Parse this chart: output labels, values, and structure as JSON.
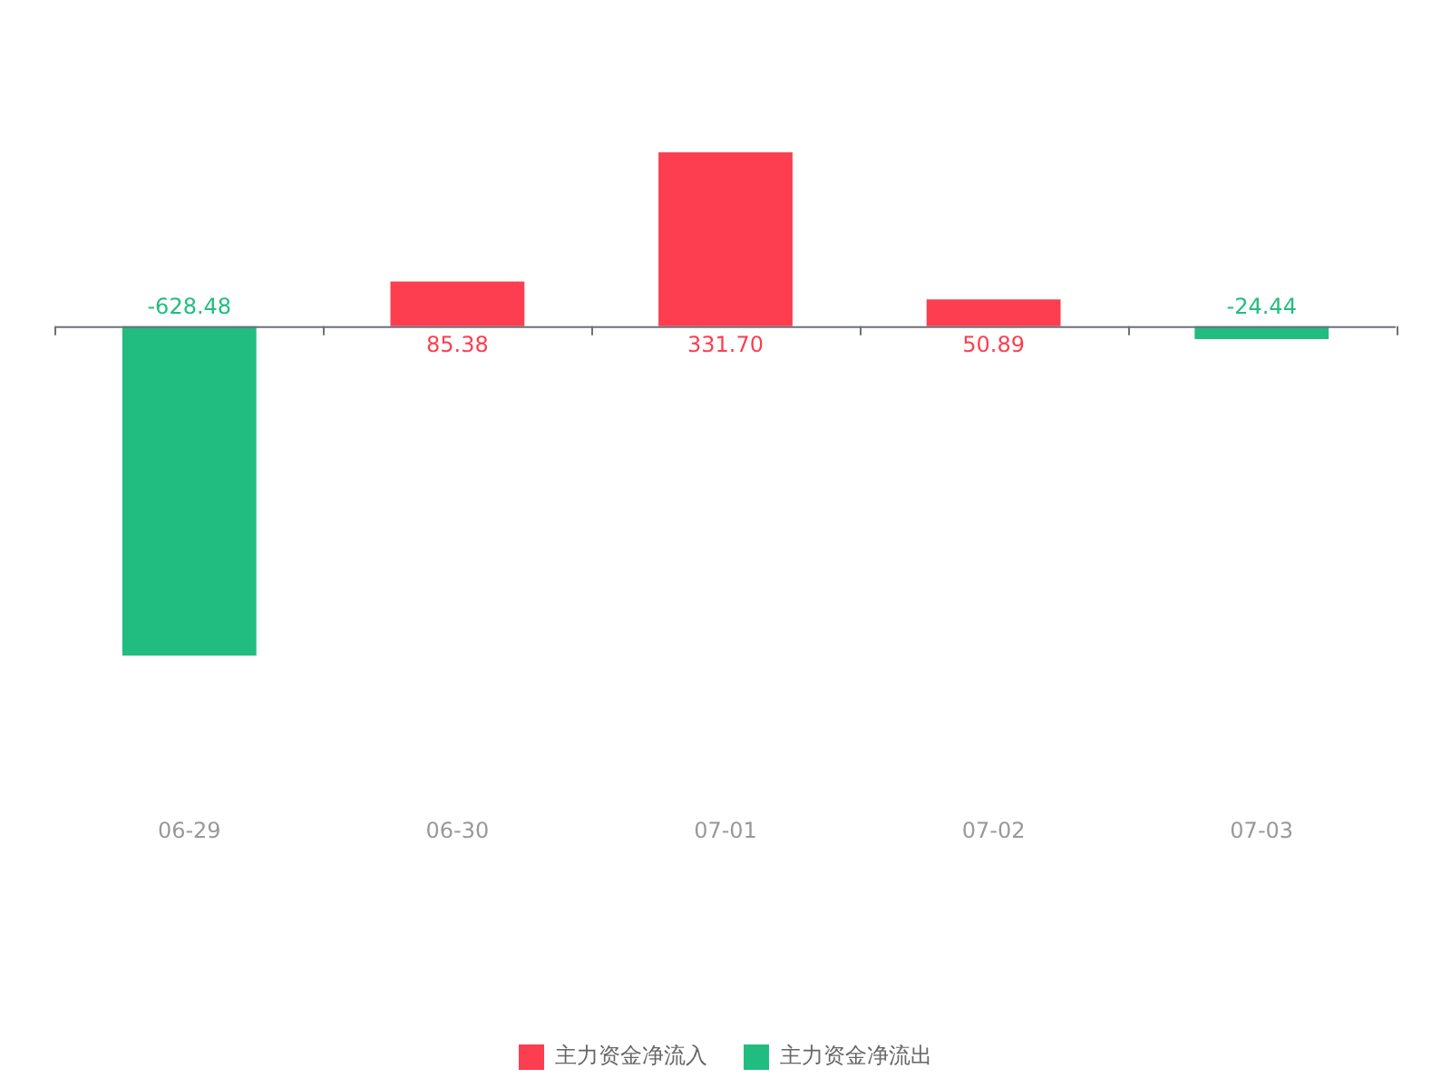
{
  "chart_data": {
    "type": "bar",
    "stacked": true,
    "categories": [
      "06-29",
      "06-30",
      "07-01",
      "07-02",
      "07-03"
    ],
    "series": [
      {
        "name": "主力资金净流入",
        "color": "#fc3e50",
        "values": [
          null,
          85.38,
          331.7,
          50.89,
          null
        ],
        "value_labels": [
          null,
          "85.38",
          "331.70",
          "50.89",
          null
        ]
      },
      {
        "name": "主力资金净流出",
        "color": "#21bd80",
        "values": [
          -628.48,
          null,
          null,
          null,
          -24.44
        ],
        "value_labels": [
          "-628.48",
          null,
          null,
          null,
          "-24.44"
        ]
      }
    ],
    "tick_labels": "x",
    "legend": "bottom"
  }
}
